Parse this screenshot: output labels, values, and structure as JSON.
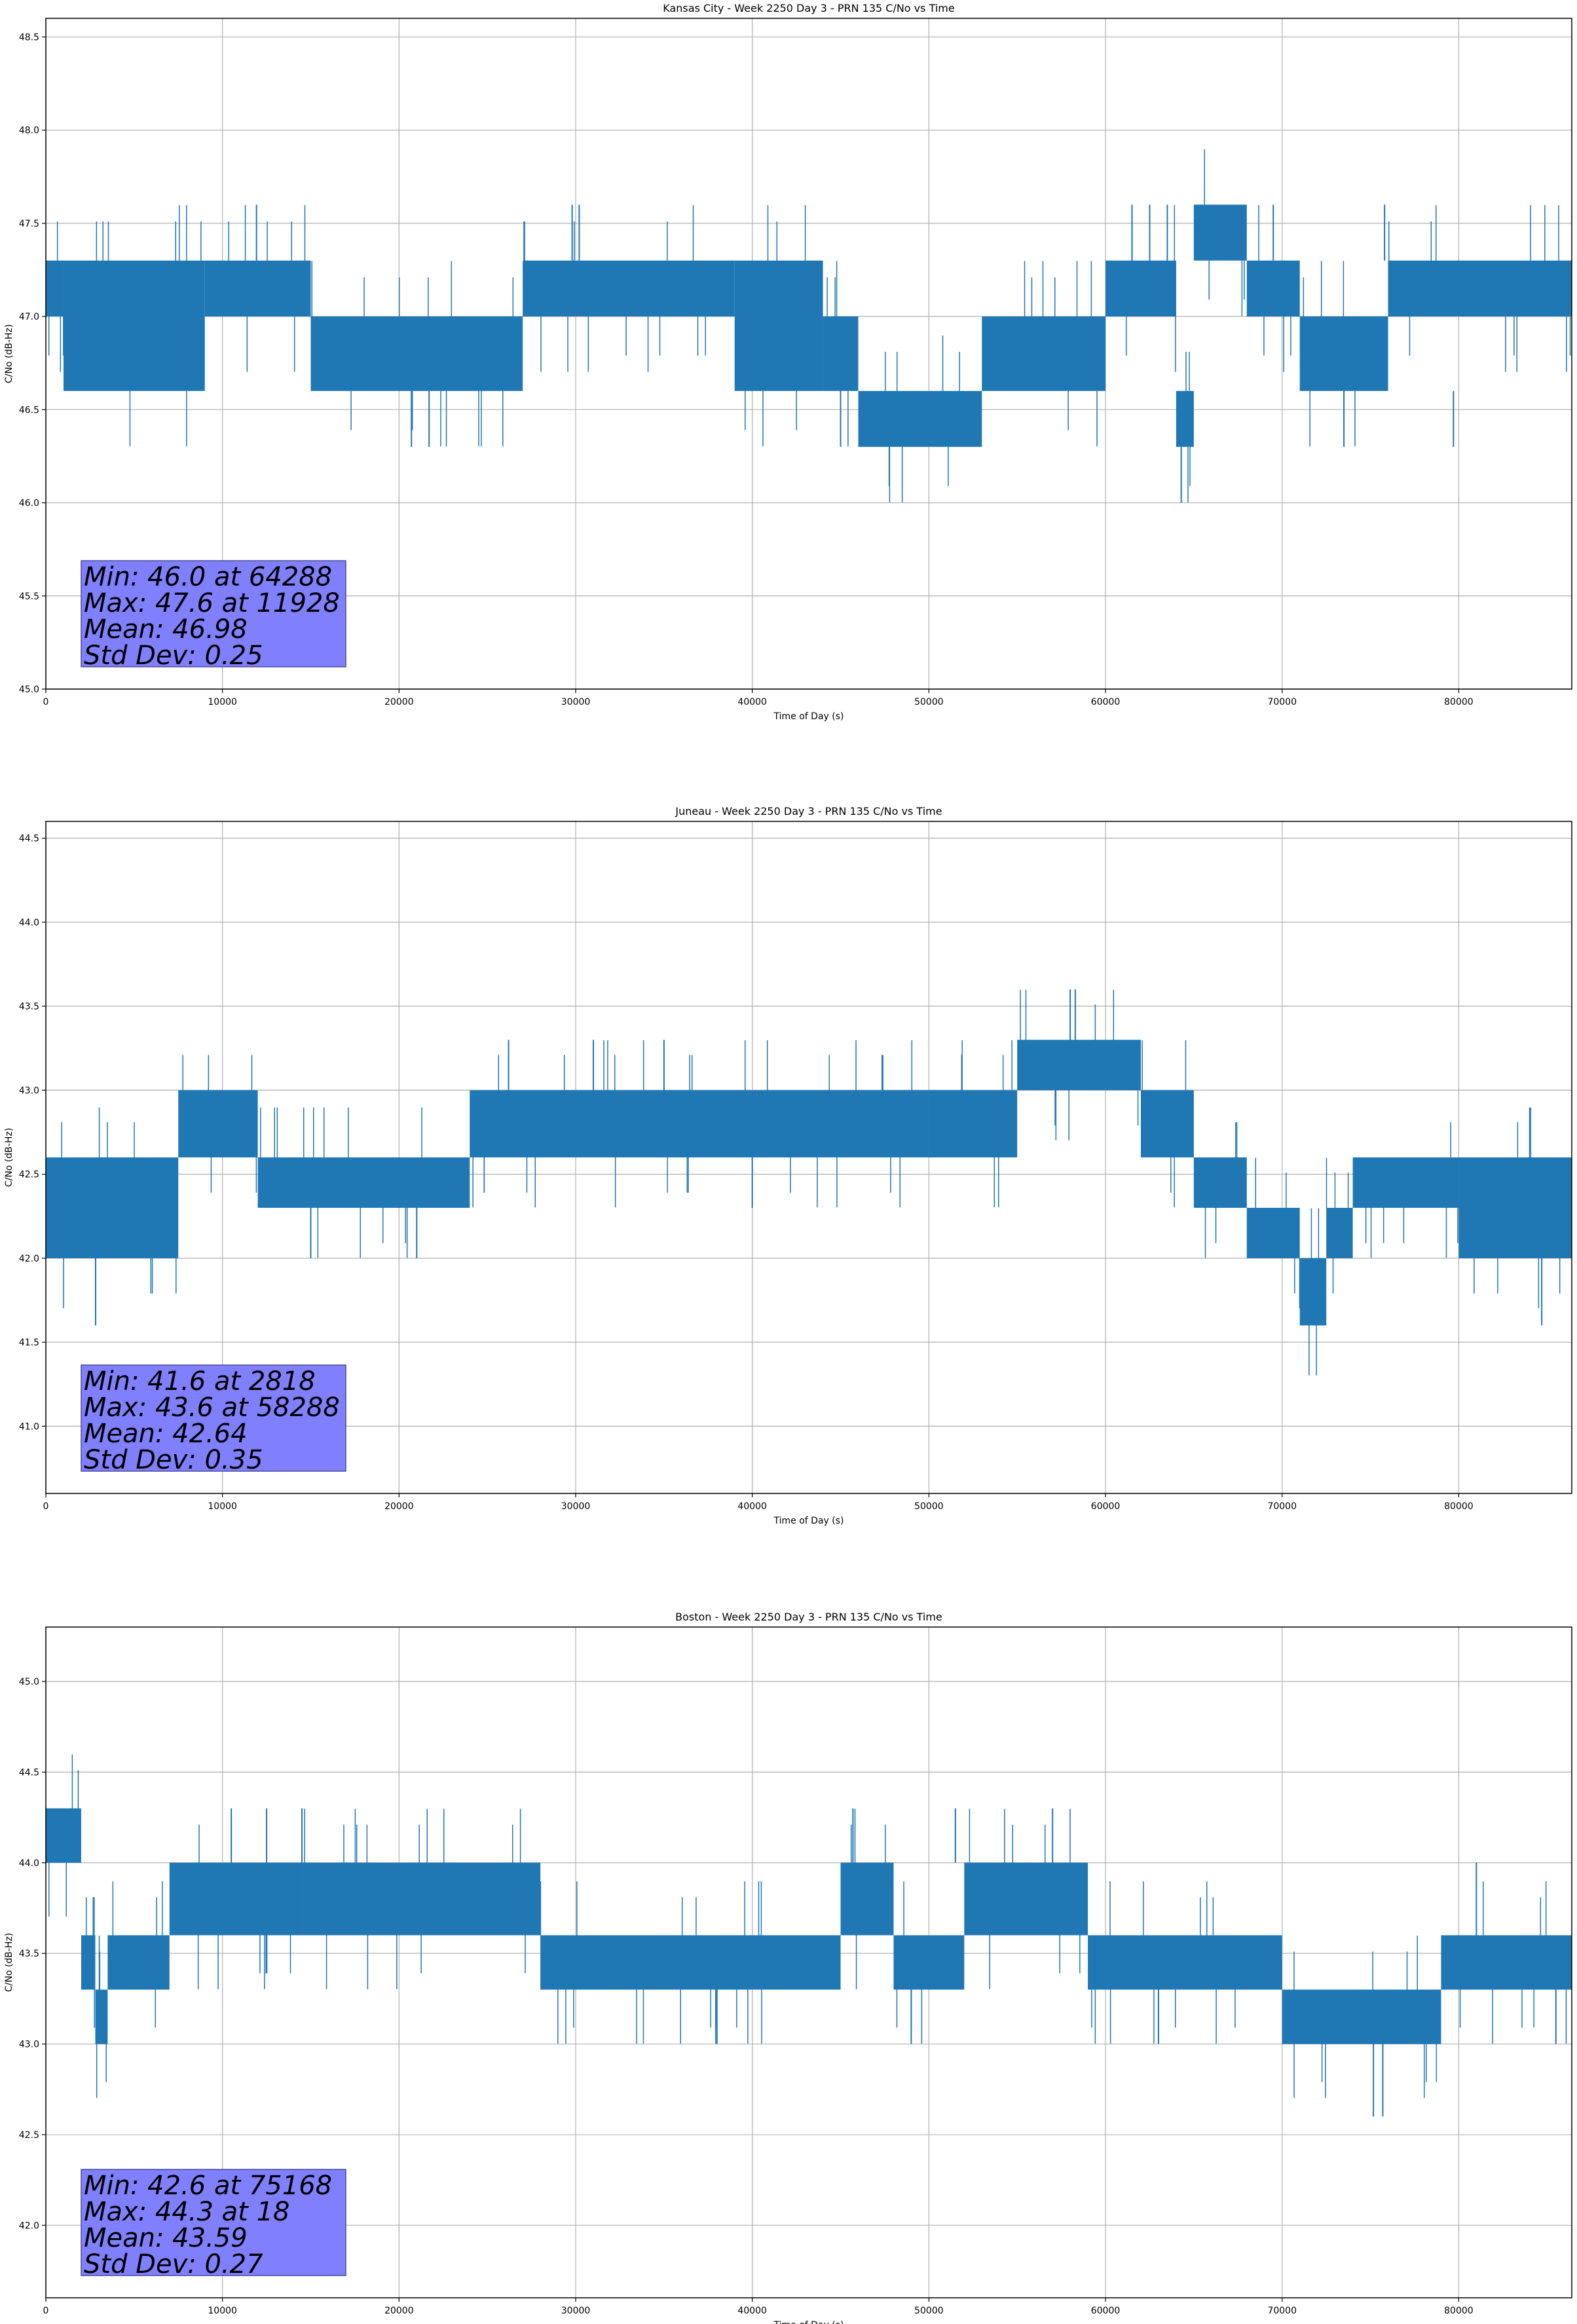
{
  "colors": {
    "series": "#1f77b4",
    "grid": "#b0b0b0",
    "axes": "#000000",
    "stats_box_fill": "#8080ff",
    "stats_box_edge": "#4a4a9a"
  },
  "chart_data": [
    {
      "type": "line",
      "title": "Kansas City - Week 2250 Day 3 - PRN 135 C/No vs Time",
      "xlabel": "Time of Day (s)",
      "ylabel": "C/No (dB-Hz)",
      "xlim": [
        0,
        86400
      ],
      "ylim": [
        45.0,
        48.6
      ],
      "xticks": [
        0,
        10000,
        20000,
        30000,
        40000,
        50000,
        60000,
        70000,
        80000
      ],
      "yticks": [
        45.0,
        45.5,
        46.0,
        46.5,
        47.0,
        47.5,
        48.0,
        48.5
      ],
      "grid": true,
      "stats": [
        "Min: 46.0 at 64288",
        "Max: 47.6 at 11928",
        "Mean: 46.98",
        "Std Dev: 0.25"
      ],
      "segments": [
        {
          "x": [
            0,
            1000
          ],
          "range": [
            47.0,
            47.3
          ]
        },
        {
          "x": [
            1000,
            9000
          ],
          "range": [
            46.6,
            47.3
          ]
        },
        {
          "x": [
            9000,
            15000
          ],
          "range": [
            47.0,
            47.3
          ]
        },
        {
          "x": [
            15000,
            27000
          ],
          "range": [
            46.6,
            47.0
          ]
        },
        {
          "x": [
            27000,
            39000
          ],
          "range": [
            47.0,
            47.3
          ]
        },
        {
          "x": [
            39000,
            44000
          ],
          "range": [
            46.6,
            47.3
          ]
        },
        {
          "x": [
            44000,
            46000
          ],
          "range": [
            46.6,
            47.0
          ]
        },
        {
          "x": [
            46000,
            53000
          ],
          "range": [
            46.3,
            46.6
          ]
        },
        {
          "x": [
            53000,
            60000
          ],
          "range": [
            46.6,
            47.0
          ]
        },
        {
          "x": [
            60000,
            64000
          ],
          "range": [
            47.0,
            47.3
          ]
        },
        {
          "x": [
            64000,
            65000
          ],
          "range": [
            46.3,
            46.6
          ]
        },
        {
          "x": [
            65000,
            68000
          ],
          "range": [
            47.3,
            47.6
          ]
        },
        {
          "x": [
            68000,
            71000
          ],
          "range": [
            47.0,
            47.3
          ]
        },
        {
          "x": [
            71000,
            76000
          ],
          "range": [
            46.6,
            47.0
          ]
        },
        {
          "x": [
            76000,
            86400
          ],
          "range": [
            47.0,
            47.3
          ]
        }
      ],
      "spikes": [
        {
          "x": 11928,
          "range": [
            47.3,
            47.6
          ]
        },
        {
          "x": 29800,
          "range": [
            47.3,
            47.6
          ]
        },
        {
          "x": 30200,
          "range": [
            47.3,
            47.6
          ]
        },
        {
          "x": 61500,
          "range": [
            47.3,
            47.6
          ]
        },
        {
          "x": 62500,
          "range": [
            47.3,
            47.6
          ]
        },
        {
          "x": 63500,
          "range": [
            47.3,
            47.6
          ]
        },
        {
          "x": 69500,
          "range": [
            47.3,
            47.6
          ]
        },
        {
          "x": 75800,
          "range": [
            47.3,
            47.6
          ]
        },
        {
          "x": 64288,
          "range": [
            46.0,
            46.3
          ]
        },
        {
          "x": 20700,
          "range": [
            46.3,
            46.6
          ]
        },
        {
          "x": 21700,
          "range": [
            46.3,
            46.6
          ]
        },
        {
          "x": 45000,
          "range": [
            46.3,
            46.6
          ]
        },
        {
          "x": 73500,
          "range": [
            46.3,
            46.6
          ]
        },
        {
          "x": 79700,
          "range": [
            46.3,
            46.6
          ]
        }
      ]
    },
    {
      "type": "line",
      "title": "Juneau - Week 2250 Day 3 - PRN 135 C/No vs Time",
      "xlabel": "Time of Day (s)",
      "ylabel": "C/No (dB-Hz)",
      "xlim": [
        0,
        86400
      ],
      "ylim": [
        40.6,
        44.6
      ],
      "xticks": [
        0,
        10000,
        20000,
        30000,
        40000,
        50000,
        60000,
        70000,
        80000
      ],
      "yticks": [
        41.0,
        41.5,
        42.0,
        42.5,
        43.0,
        43.5,
        44.0,
        44.5
      ],
      "grid": true,
      "stats": [
        "Min: 41.6 at 2818",
        "Max: 43.6 at 58288",
        "Mean: 42.64",
        "Std Dev: 0.35"
      ],
      "segments": [
        {
          "x": [
            0,
            7500
          ],
          "range": [
            42.0,
            42.6
          ]
        },
        {
          "x": [
            7500,
            12000
          ],
          "range": [
            42.6,
            43.0
          ]
        },
        {
          "x": [
            12000,
            24000
          ],
          "range": [
            42.3,
            42.6
          ]
        },
        {
          "x": [
            24000,
            50000
          ],
          "range": [
            42.6,
            43.0
          ]
        },
        {
          "x": [
            50000,
            55000
          ],
          "range": [
            42.6,
            43.0
          ]
        },
        {
          "x": [
            55000,
            62000
          ],
          "range": [
            43.0,
            43.3
          ]
        },
        {
          "x": [
            62000,
            65000
          ],
          "range": [
            42.6,
            43.0
          ]
        },
        {
          "x": [
            65000,
            68000
          ],
          "range": [
            42.3,
            42.6
          ]
        },
        {
          "x": [
            68000,
            71000
          ],
          "range": [
            42.0,
            42.3
          ]
        },
        {
          "x": [
            71000,
            72500
          ],
          "range": [
            41.6,
            42.0
          ]
        },
        {
          "x": [
            72500,
            74000
          ],
          "range": [
            42.0,
            42.3
          ]
        },
        {
          "x": [
            74000,
            80000
          ],
          "range": [
            42.3,
            42.6
          ]
        },
        {
          "x": [
            80000,
            86400
          ],
          "range": [
            42.0,
            42.6
          ]
        }
      ],
      "spikes": [
        {
          "x": 2818,
          "range": [
            41.6,
            42.0
          ]
        },
        {
          "x": 58288,
          "range": [
            43.3,
            43.6
          ]
        },
        {
          "x": 58000,
          "range": [
            43.3,
            43.6
          ]
        },
        {
          "x": 26200,
          "range": [
            43.0,
            43.3
          ]
        },
        {
          "x": 31000,
          "range": [
            43.0,
            43.3
          ]
        },
        {
          "x": 35000,
          "range": [
            43.0,
            43.3
          ]
        },
        {
          "x": 40000,
          "range": [
            42.3,
            42.6
          ]
        },
        {
          "x": 15000,
          "range": [
            42.0,
            42.3
          ]
        },
        {
          "x": 21000,
          "range": [
            42.0,
            42.3
          ]
        },
        {
          "x": 84700,
          "range": [
            41.6,
            42.0
          ]
        }
      ]
    },
    {
      "type": "line",
      "title": "Boston - Week 2250 Day 3 - PRN 135 C/No vs Time",
      "xlabel": "Time of Day (s)",
      "ylabel": "C/No (dB-Hz)",
      "xlim": [
        0,
        86400
      ],
      "ylim": [
        41.6,
        45.3
      ],
      "xticks": [
        0,
        10000,
        20000,
        30000,
        40000,
        50000,
        60000,
        70000,
        80000
      ],
      "yticks": [
        42.0,
        42.5,
        43.0,
        43.5,
        44.0,
        44.5,
        45.0
      ],
      "grid": true,
      "stats": [
        "Min: 42.6 at 75168",
        "Max: 44.3 at 18",
        "Mean: 43.59",
        "Std Dev: 0.27"
      ],
      "segments": [
        {
          "x": [
            0,
            2000
          ],
          "range": [
            44.0,
            44.3
          ]
        },
        {
          "x": [
            2000,
            2800
          ],
          "range": [
            43.3,
            43.6
          ]
        },
        {
          "x": [
            2800,
            3500
          ],
          "range": [
            43.0,
            43.3
          ]
        },
        {
          "x": [
            3500,
            7000
          ],
          "range": [
            43.3,
            43.6
          ]
        },
        {
          "x": [
            7000,
            14500
          ],
          "range": [
            43.6,
            44.0
          ]
        },
        {
          "x": [
            14500,
            28000
          ],
          "range": [
            43.6,
            44.0
          ]
        },
        {
          "x": [
            28000,
            45000
          ],
          "range": [
            43.3,
            43.6
          ]
        },
        {
          "x": [
            45000,
            48000
          ],
          "range": [
            43.6,
            44.0
          ]
        },
        {
          "x": [
            48000,
            52000
          ],
          "range": [
            43.3,
            43.6
          ]
        },
        {
          "x": [
            52000,
            59000
          ],
          "range": [
            43.6,
            44.0
          ]
        },
        {
          "x": [
            59000,
            70000
          ],
          "range": [
            43.3,
            43.6
          ]
        },
        {
          "x": [
            70000,
            79000
          ],
          "range": [
            43.0,
            43.3
          ]
        },
        {
          "x": [
            79000,
            86400
          ],
          "range": [
            43.3,
            43.6
          ]
        }
      ],
      "spikes": [
        {
          "x": 18,
          "range": [
            44.0,
            44.3
          ]
        },
        {
          "x": 10500,
          "range": [
            44.0,
            44.3
          ]
        },
        {
          "x": 12500,
          "range": [
            44.0,
            44.3
          ]
        },
        {
          "x": 14500,
          "range": [
            44.0,
            44.3
          ]
        },
        {
          "x": 45700,
          "range": [
            44.0,
            44.3
          ]
        },
        {
          "x": 51500,
          "range": [
            44.0,
            44.3
          ]
        },
        {
          "x": 57000,
          "range": [
            44.0,
            44.3
          ]
        },
        {
          "x": 75168,
          "range": [
            42.6,
            43.0
          ]
        },
        {
          "x": 75700,
          "range": [
            42.6,
            43.0
          ]
        },
        {
          "x": 38000,
          "range": [
            43.0,
            43.3
          ]
        },
        {
          "x": 49000,
          "range": [
            43.0,
            43.3
          ]
        },
        {
          "x": 63000,
          "range": [
            43.0,
            43.3
          ]
        },
        {
          "x": 85500,
          "range": [
            43.0,
            43.3
          ]
        },
        {
          "x": 81000,
          "range": [
            43.6,
            44.0
          ]
        }
      ]
    }
  ]
}
